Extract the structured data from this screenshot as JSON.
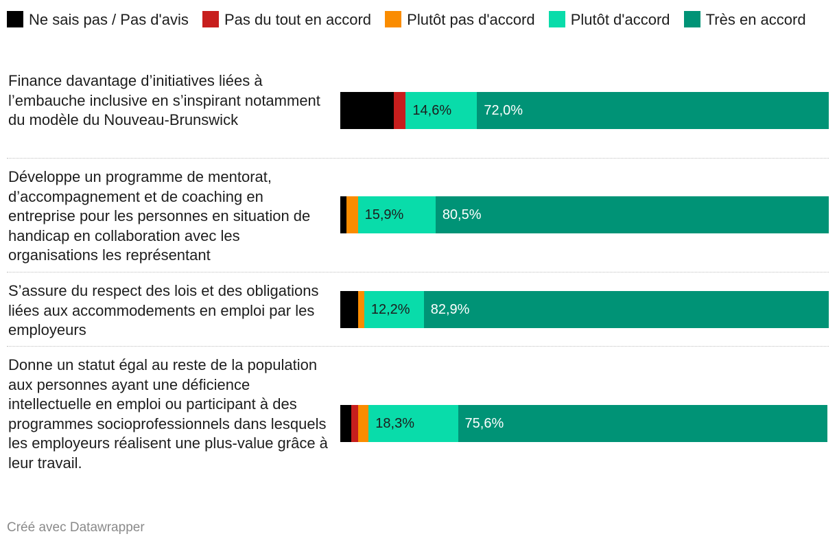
{
  "chart_data": {
    "type": "bar",
    "orientation": "horizontal",
    "stacked": true,
    "legend_position": "top",
    "categories": [
      "Finance davantage d’initiatives liées à l’embauche inclusive en s’inspirant notamment du modèle du Nouveau-Brunswick",
      "Développe un programme de mentorat, d’accompagnement et de coaching en entreprise pour les personnes en situation de handicap en collaboration avec les organisations les représentant",
      "S’assure du respect des lois et des obligations liées aux accommodements en emploi par les employeurs",
      "Donne un statut égal au reste de la population aux personnes ayant une déficience intellectuelle en emploi ou participant à des programmes socioprofessionnels dans lesquels les employeurs réalisent une plus-value grâce à leur travail."
    ],
    "series": [
      {
        "name": "Ne sais pas / Pas d'avis",
        "color": "#000000",
        "values": [
          11.0,
          1.2,
          3.6,
          2.2
        ],
        "labels": [
          "",
          "",
          "",
          ""
        ],
        "label_color": "#ffffff"
      },
      {
        "name": "Pas du tout en accord",
        "color": "#c71e1d",
        "values": [
          2.4,
          0.0,
          0.0,
          1.4
        ],
        "labels": [
          "",
          "",
          "",
          ""
        ],
        "label_color": "#ffffff"
      },
      {
        "name": "Plutôt pas d'accord",
        "color": "#fa8c00",
        "values": [
          0.0,
          2.4,
          1.3,
          2.2
        ],
        "labels": [
          "",
          "",
          "",
          ""
        ],
        "label_color": "#1d1d1d"
      },
      {
        "name": "Plutôt d'accord",
        "color": "#09dcaa",
        "values": [
          14.6,
          15.9,
          12.2,
          18.3
        ],
        "labels": [
          "14,6%",
          "15,9%",
          "12,2%",
          "18,3%"
        ],
        "label_color": "#1d1d1d"
      },
      {
        "name": "Très en accord",
        "color": "#009376",
        "values": [
          72.0,
          80.5,
          82.9,
          75.6
        ],
        "labels": [
          "72,0%",
          "80,5%",
          "82,9%",
          "75,6%"
        ],
        "label_color": "#ffffff"
      }
    ],
    "xlim": [
      0,
      100
    ],
    "xlabel": "",
    "ylabel": ""
  },
  "credit": "Créé avec Datawrapper"
}
